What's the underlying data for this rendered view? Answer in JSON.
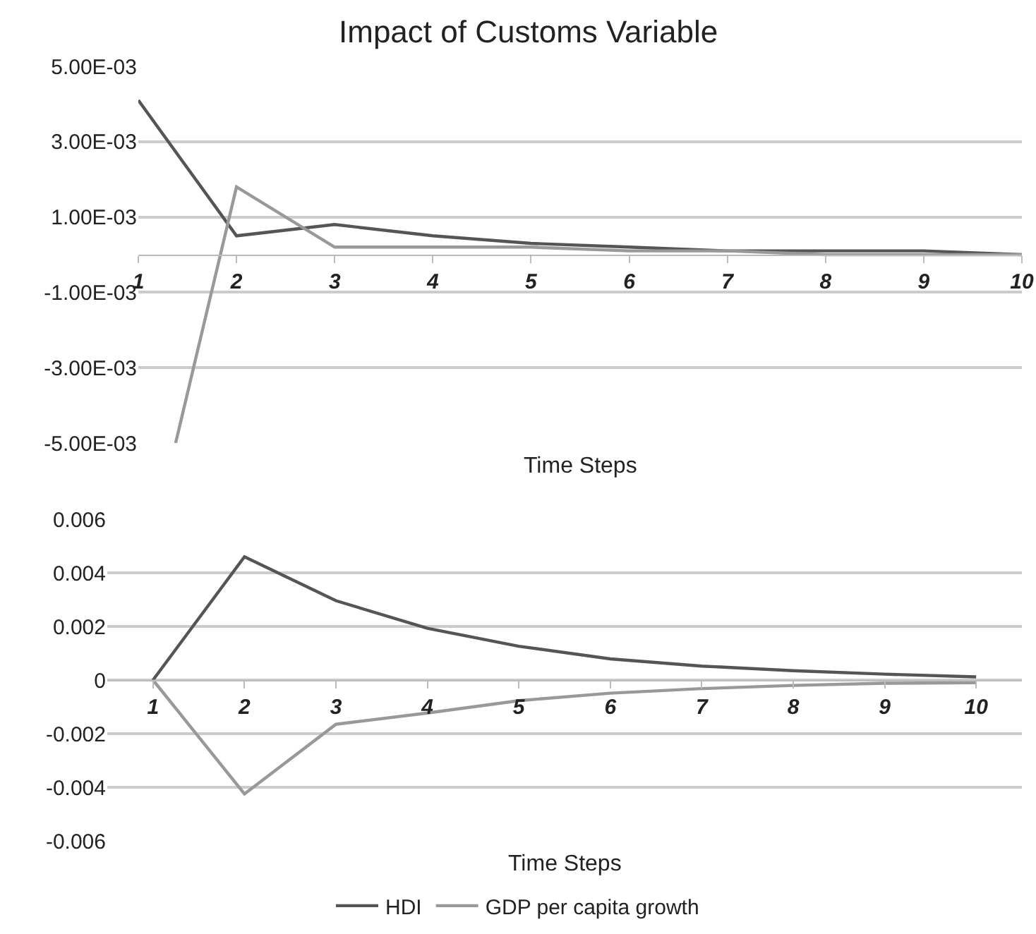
{
  "chart_data": [
    {
      "type": "line",
      "title": "Impact of Customs Variable",
      "xlabel": "Time Steps",
      "xlim": [
        1,
        10
      ],
      "xticks": [
        1,
        2,
        3,
        4,
        5,
        6,
        7,
        8,
        9,
        10
      ],
      "ylim": [
        -0.005,
        0.005
      ],
      "yticks": [
        {
          "value": 0.005,
          "label": "5.00E-03"
        },
        {
          "value": 0.003,
          "label": "3.00E-03"
        },
        {
          "value": 0.001,
          "label": "1.00E-03"
        },
        {
          "value": -0.001,
          "label": "-1.00E-03"
        },
        {
          "value": -0.003,
          "label": "-3.00E-03"
        },
        {
          "value": -0.005,
          "label": "-5.00E-03"
        }
      ],
      "grid": "y",
      "marker": "none",
      "line_style": "solid",
      "series": [
        {
          "color": "#555555",
          "x": [
            1,
            2,
            3,
            4,
            5,
            6,
            7,
            8,
            9,
            10
          ],
          "values": [
            0.0041,
            0.0005,
            0.0008,
            0.0005,
            0.0003,
            0.0002,
            0.0001,
            0.0001,
            0.0001,
            0
          ]
        },
        {
          "color": "#999999",
          "x": [
            1.38,
            2,
            3,
            4,
            5,
            6,
            7,
            8,
            9,
            10
          ],
          "values": [
            -0.005,
            0.0018,
            0.0002,
            0.0002,
            0.0002,
            0.0001,
            0.0001,
            0,
            0,
            0
          ]
        }
      ]
    },
    {
      "type": "line",
      "xlabel": "Time Steps",
      "xlim": [
        0.5,
        10.5
      ],
      "xticks": [
        1,
        2,
        3,
        4,
        5,
        6,
        7,
        8,
        9,
        10
      ],
      "ylim": [
        -0.006,
        0.006
      ],
      "yticks": [
        0.006,
        0.004,
        0.002,
        0,
        -0.002,
        -0.004,
        -0.006
      ],
      "grid": "y",
      "legend": "bottom",
      "marker": "none",
      "line_style": "solid",
      "series": [
        {
          "name": "HDI",
          "color": "#555555",
          "x": [
            1,
            2,
            3,
            4,
            5,
            6,
            7,
            8,
            9,
            10
          ],
          "values": [
            0,
            0.0046,
            0.00296,
            0.00193,
            0.00126,
            0.00079,
            0.00052,
            0.00035,
            0.00022,
            0.00012
          ]
        },
        {
          "name": "GDP per capita growth",
          "color": "#999999",
          "x": [
            1,
            2,
            3,
            4,
            5,
            6,
            7,
            8,
            9,
            10
          ],
          "values": [
            0,
            -0.00425,
            -0.00165,
            -0.00123,
            -0.00077,
            -0.00049,
            -0.00032,
            -0.0002,
            -0.00012,
            -0.0001
          ]
        }
      ]
    }
  ]
}
